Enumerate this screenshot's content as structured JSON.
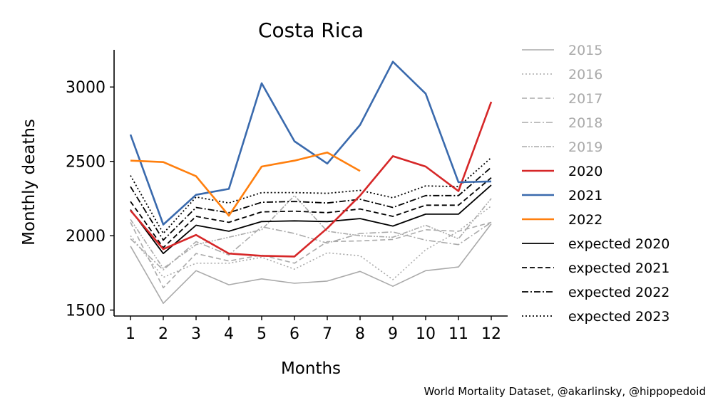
{
  "chart_data": {
    "type": "line",
    "title": "Costa Rica",
    "xlabel": "Months",
    "ylabel": "Monthly deaths",
    "x": [
      1,
      2,
      3,
      4,
      5,
      6,
      7,
      8,
      9,
      10,
      11,
      12
    ],
    "xlim": [
      0.5,
      12.5
    ],
    "ylim": [
      1460,
      3250
    ],
    "yticks": [
      1500,
      2000,
      2500,
      3000
    ],
    "grid": false,
    "legend_position": "right",
    "series": [
      {
        "name": "2015",
        "color": "#aaaaaa",
        "dash": "solid",
        "width": 1.6,
        "values": [
          1930,
          1545,
          1765,
          1670,
          1710,
          1680,
          1695,
          1760,
          1660,
          1765,
          1790,
          2080
        ]
      },
      {
        "name": "2016",
        "color": "#aaaaaa",
        "dash": "dotted",
        "width": 1.6,
        "values": [
          2000,
          1720,
          1815,
          1815,
          1855,
          1775,
          1885,
          1865,
          1705,
          1905,
          2030,
          2200
        ]
      },
      {
        "name": "2017",
        "color": "#aaaaaa",
        "dash": "dashed",
        "width": 1.6,
        "values": [
          2090,
          1650,
          1880,
          1830,
          1870,
          1815,
          1960,
          1965,
          1975,
          2040,
          2030,
          2090
        ]
      },
      {
        "name": "2018",
        "color": "#aaaaaa",
        "dash": "dashdot",
        "width": 1.6,
        "values": [
          1980,
          1770,
          1960,
          1870,
          2060,
          2015,
          1950,
          2015,
          2025,
          1970,
          1940,
          2090
        ]
      },
      {
        "name": "2019",
        "color": "#aaaaaa",
        "dash": "dashdotdot",
        "width": 1.6,
        "values": [
          2110,
          1780,
          1940,
          1990,
          2040,
          2270,
          2030,
          2000,
          1990,
          2070,
          1980,
          2250
        ]
      },
      {
        "name": "2020",
        "color": "#d62728",
        "dash": "solid",
        "width": 2.6,
        "values": [
          2170,
          1910,
          2005,
          1880,
          1865,
          1860,
          2050,
          2270,
          2535,
          2465,
          2300,
          2900
        ]
      },
      {
        "name": "2021",
        "color": "#3a6aad",
        "dash": "solid",
        "width": 2.6,
        "values": [
          2680,
          2075,
          2275,
          2315,
          3025,
          2635,
          2485,
          2745,
          3170,
          2955,
          2360,
          2365
        ]
      },
      {
        "name": "2022",
        "color": "#ff7f0e",
        "dash": "solid",
        "width": 2.6,
        "values": [
          2505,
          2495,
          2400,
          2135,
          2465,
          2505,
          2560,
          2435,
          null,
          null,
          null,
          null
        ]
      },
      {
        "name": "expected 2020",
        "color": "#000000",
        "dash": "solid",
        "width": 1.8,
        "values": [
          2175,
          1880,
          2070,
          2030,
          2095,
          2100,
          2095,
          2115,
          2065,
          2145,
          2145,
          2340
        ]
      },
      {
        "name": "expected 2021",
        "color": "#000000",
        "dash": "dashed",
        "width": 1.8,
        "values": [
          2230,
          1920,
          2130,
          2090,
          2160,
          2165,
          2155,
          2180,
          2130,
          2205,
          2205,
          2390
        ]
      },
      {
        "name": "expected 2022",
        "color": "#000000",
        "dash": "dashdot",
        "width": 1.8,
        "values": [
          2330,
          1970,
          2190,
          2155,
          2225,
          2230,
          2220,
          2245,
          2190,
          2270,
          2270,
          2460
        ]
      },
      {
        "name": "expected 2023",
        "color": "#000000",
        "dash": "dotted",
        "width": 1.8,
        "values": [
          2405,
          2015,
          2260,
          2220,
          2290,
          2290,
          2285,
          2305,
          2255,
          2335,
          2330,
          2525
        ]
      }
    ]
  },
  "caption": "World Mortality Dataset, @akarlinsky, @hippopedoid",
  "legend_muted_color": "#aaaaaa",
  "legend_text_color": "#000000"
}
